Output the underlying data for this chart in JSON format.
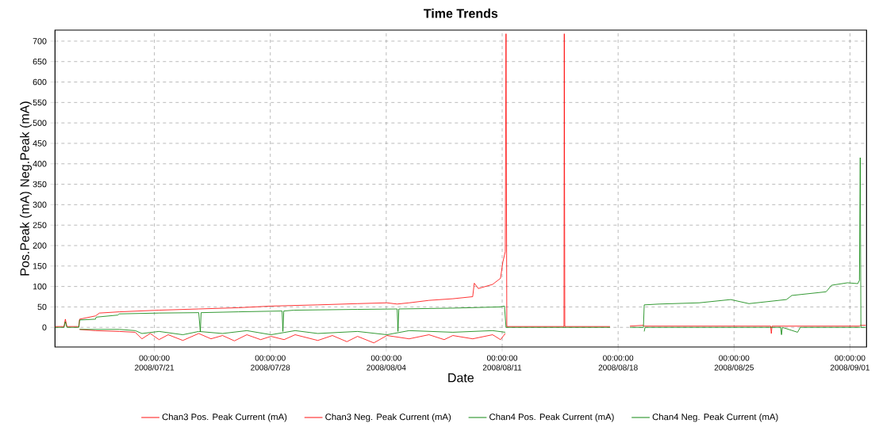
{
  "chart_data": {
    "type": "line",
    "title": "Time Trends",
    "xlabel": "Date",
    "ylabel": "Pos.Peak (mA) Neg.Peak (mA)",
    "xlim": [
      "2008-07-15",
      "2008-09-02"
    ],
    "ylim": [
      -48,
      727
    ],
    "xticks": [
      {
        "value": "2008-07-21",
        "label": "00:00:00 2008/07/21"
      },
      {
        "value": "2008-07-28",
        "label": "00:00:00 2008/07/28"
      },
      {
        "value": "2008-08-04",
        "label": "00:00:00 2008/08/04"
      },
      {
        "value": "2008-08-11",
        "label": "00:00:00 2008/08/11"
      },
      {
        "value": "2008-08-18",
        "label": "00:00:00 2008/08/18"
      },
      {
        "value": "2008-08-25",
        "label": "00:00:00 2008/08/25"
      },
      {
        "value": "2008-09-01",
        "label": "00:00:00 2008/09/01"
      }
    ],
    "yticks": [
      0,
      50,
      100,
      150,
      200,
      250,
      300,
      350,
      400,
      450,
      500,
      550,
      600,
      650,
      700
    ],
    "grid": true,
    "legend": "bottom",
    "marker": "none",
    "line_style": "solid",
    "series": [
      {
        "name": "Chan3 Pos. Peak Current (mA)",
        "color": "#ff0000",
        "x": [
          "2008-07-15T00:00",
          "2008-07-15T13:00",
          "2008-07-15T15:00",
          "2008-07-15T17:15",
          "2008-07-16T10:30",
          "2008-07-16T11:40",
          "2008-07-17T10:40",
          "2008-07-17T16:25",
          "2008-07-18T21:10",
          "2008-07-21T06:45",
          "2008-07-23T16:15",
          "2008-07-26T01:50",
          "2008-07-28T01:00",
          "2008-07-30T20:50",
          "2008-08-02T06:25",
          "2008-08-04T01:00",
          "2008-08-04T15:50",
          "2008-08-05T09:10",
          "2008-08-06T13:55",
          "2008-08-08T00:30",
          "2008-08-09T05:15",
          "2008-08-09T07:35",
          "2008-08-09T13:25",
          "2008-08-10T10:05",
          "2008-08-10T21:35",
          "2008-08-11T01:00",
          "2008-08-11T04:30",
          "2008-08-11T05:35",
          "2008-08-11T06:45",
          "2008-08-14T17:35",
          "2008-08-14T18:00",
          "2008-08-14T18:45",
          "2008-08-17T12:15",
          "2008-08-17T13:25",
          "2008-08-18T17:05",
          "2008-08-19T12:40",
          "2008-08-19T13:50",
          "2008-08-27T05:00",
          "2008-08-27T06:00",
          "2008-08-27T07:00",
          "2008-09-01T13:40",
          "2008-09-01T14:50",
          "2008-09-01T23:00"
        ],
        "values": [
          2,
          2,
          20,
          2,
          2,
          20,
          28,
          35,
          38,
          42,
          45,
          48,
          52,
          55,
          58,
          60,
          57,
          60,
          66,
          70,
          75,
          108,
          95,
          105,
          120,
          160,
          185,
          718,
          2,
          2,
          718,
          2,
          2,
          null,
          3,
          5,
          3,
          3,
          -15,
          3,
          3,
          5,
          5
        ]
      },
      {
        "name": "Chan3 Neg. Peak Current (mA)",
        "color": "#ff0000",
        "x": [
          "2008-07-16T11:40",
          "2008-07-17T10:40",
          "2008-07-18T21:10",
          "2008-07-19T20:15",
          "2008-07-20T06:00",
          "2008-07-20T18:00",
          "2008-07-21T06:45",
          "2008-07-21T20:00",
          "2008-07-22T17:15",
          "2008-07-23T16:15",
          "2008-07-24T10:00",
          "2008-07-25T02:50",
          "2008-07-25T20:00",
          "2008-07-26T14:00",
          "2008-07-27T10:00",
          "2008-07-28T01:00",
          "2008-07-28T20:00",
          "2008-07-29T12:00",
          "2008-07-30T20:50",
          "2008-07-31T18:00",
          "2008-08-01T15:00",
          "2008-08-02T06:25",
          "2008-08-03T06:00",
          "2008-08-04T01:00",
          "2008-08-05T09:10",
          "2008-08-06T13:55",
          "2008-08-07T12:00",
          "2008-08-08T00:30",
          "2008-08-09T05:15",
          "2008-08-10T10:05",
          "2008-08-10T21:35",
          "2008-08-11T04:30"
        ],
        "values": [
          -5,
          -8,
          -10,
          -12,
          -28,
          -15,
          -30,
          -18,
          -32,
          -15,
          -28,
          -20,
          -33,
          -18,
          -30,
          -22,
          -30,
          -18,
          -32,
          -20,
          -35,
          -22,
          -38,
          -20,
          -28,
          -18,
          -30,
          -20,
          -28,
          -18,
          -30,
          -15
        ]
      },
      {
        "name": "Chan4 Pos. Peak Current (mA)",
        "color": "#008000",
        "x": [
          "2008-07-15T00:00",
          "2008-07-15T13:00",
          "2008-07-15T15:00",
          "2008-07-15T17:15",
          "2008-07-16T10:30",
          "2008-07-16T11:40",
          "2008-07-17T10:40",
          "2008-07-17T11:40",
          "2008-07-18T18:55",
          "2008-07-18T21:10",
          "2008-07-21T06:45",
          "2008-07-23T16:15",
          "2008-07-23T18:35",
          "2008-07-23T19:45",
          "2008-07-26T01:50",
          "2008-07-28T17:05",
          "2008-07-28T18:15",
          "2008-07-28T19:30",
          "2008-07-29T10:20",
          "2008-08-02T06:25",
          "2008-08-04T15:50",
          "2008-08-04T17:00",
          "2008-08-04T18:15",
          "2008-08-08T00:30",
          "2008-08-10T21:35",
          "2008-08-11T03:20",
          "2008-08-11T05:35",
          "2008-08-17T12:15",
          "2008-08-17T13:25",
          "2008-08-18T17:05",
          "2008-08-19T12:40",
          "2008-08-19T13:50",
          "2008-08-20T11:40",
          "2008-08-22T21:10",
          "2008-08-24T19:10",
          "2008-08-25T21:35",
          "2008-08-28T03:50",
          "2008-08-28T11:45",
          "2008-08-30T13:25",
          "2008-08-30T21:20",
          "2008-08-31T20:25",
          "2008-09-01T11:20",
          "2008-09-01T13:40",
          "2008-09-01T14:50",
          "2008-09-01T15:50",
          "2008-09-01T23:00"
        ],
        "values": [
          0,
          0,
          14,
          0,
          0,
          18,
          20,
          25,
          30,
          33,
          35,
          36,
          -10,
          36,
          38,
          40,
          -10,
          40,
          42,
          44,
          45,
          -10,
          45,
          47,
          50,
          52,
          0,
          0,
          null,
          0,
          0,
          55,
          57,
          60,
          68,
          58,
          68,
          78,
          87,
          103,
          109,
          107,
          115,
          415,
          0,
          0
        ]
      },
      {
        "name": "Chan4 Neg. Peak Current (mA)",
        "color": "#008000",
        "x": [
          "2008-07-16T11:40",
          "2008-07-18T21:10",
          "2008-07-19T20:15",
          "2008-07-20T06:00",
          "2008-07-21T06:45",
          "2008-07-22T17:15",
          "2008-07-23T16:15",
          "2008-07-25T02:50",
          "2008-07-26T14:00",
          "2008-07-28T01:00",
          "2008-07-29T12:00",
          "2008-07-30T20:50",
          "2008-08-02T06:25",
          "2008-08-04T01:00",
          "2008-08-05T09:10",
          "2008-08-08T00:30",
          "2008-08-10T10:05",
          "2008-08-11T04:30",
          "2008-08-17T13:25",
          "2008-08-19T13:50",
          "2008-08-19T15:00",
          "2008-08-27T19:30",
          "2008-08-27T20:45",
          "2008-08-27T22:00",
          "2008-08-28T20:00",
          "2008-08-29T00:00",
          "2008-09-01T14:50"
        ],
        "values": [
          -5,
          -5,
          -8,
          -15,
          -10,
          -18,
          -10,
          -15,
          -8,
          -18,
          -8,
          -15,
          -10,
          -18,
          -8,
          -12,
          -8,
          -12,
          null,
          -10,
          0,
          0,
          -18,
          0,
          -12,
          0,
          0
        ]
      }
    ]
  }
}
